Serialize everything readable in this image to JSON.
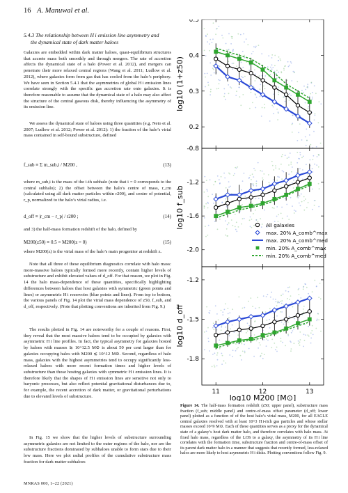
{
  "header": {
    "page_number": "16",
    "authors": "A. Manuwal et al."
  },
  "section": {
    "title_line1": "5.4.3 The relationship between H i emission line asymmetry and",
    "title_line2": "the dynamical state of dark matter haloes"
  },
  "paragraphs": {
    "p1": "Galaxies are embedded within dark matter haloes, quasi-equilibrium structures that accrete mass both smoothly and through mergers. The rate of accretion affects the dynamical state of a halo (Power et al. 2012), and mergers can penetrate their more relaxed central regions (Wang et al. 2011; Ludlow et al. 2012), where galaxies form from gas that has cooled from the halo’s periphery. We have seen in Section 5.4.1 that the asymmetries of global H i emission lines correlate strongly with the specific gas accretion rate onto galaxies. It is therefore reasonable to assume that the dynamical state of a halo may also affect the structure of the central gaseous disk, thereby influencing the asymmetry of its emission line.",
    "p2": "We assess the dynamical state of haloes using three quantities (e.g. Neto et al. 2007; Ludlow et al. 2012; Power et al. 2012): 1) the fraction of the halo’s virial mass contained in self-bound substructure, defined",
    "p3": "where m_sub,i is the mass of the i-th subhalo (note that i = 0 corresponds to the central subhalo); 2) the offset between the halo’s centre of mass, r_cm (calculated using all dark matter particles within r200), and centre of potential, r_p, normalized to the halo’s virial radius, i.e.",
    "p4": "and 3) the half-mass formation redshift of the halo, defined by",
    "p5": "where M200(z) is the virial mass of the halo’s main progenitor at redshift z.",
    "p6": "Note that all three of these equilibrium diagnostics correlate with halo mass: more-massive haloes typically formed more recently, contain higher levels of substructure and exhibit elevated values of d_off. For that reason, we plot in Fig. 14 the halo mass-dependence of these quantities, specifically highlighting differences between haloes that host galaxies with symmetric (green points and lines) or asymmetric H i reservoirs (blue points and lines). From top to bottom, the various panels of Fig. 14 plot the virial mass dependence of z50, f_sub, and d_off, respectively. (Note that plotting conventions are inherited from Fig. 9.)",
    "p7": "The results plotted in Fig. 14 are noteworthy for a couple of reasons. First, they reveal that the most massive haloes tend to be occupied by galaxies with asymmetric H i line profiles. In fact, the typical asymmetry for galaxies hosted by haloes with masses ≳ 10^12.5 M⊙ is about 50 per cent larger than for galaxies occupying halos with M200 ≲ 10^12 M⊙. Second, regardless of halo mass, galaxies with the highest asymmetries tend to occupy significantly less-relaxed haloes with more recent formation times and higher levels of substructure than those hosting galaxies with symmetric H i emission lines. It is therefore likely that the shapes of H i emission lines are sensitive not only to baryonic processes, but also reflect potential gravitational disturbances due to, for example, the recent accretion of dark matter, or gravitational perturbations due to elevated levels of substructure.",
    "p8": "In Fig. 15 we show that the higher levels of substructure surrounding asymmetric galaxies are not limited to the outer regions of the halo, nor are the substructure fractions dominated by subhaloes unable to form stars due to their low mass. Here we plot radial profiles of the cumulative substructure mass fraction for dark matter subhaloes"
  },
  "equations": {
    "eq13_lhs": "f_sub ≡ Σ m_sub,i / M200 ,",
    "eq13_num": "(13)",
    "eq14_lhs": "d_off ≡ |r_cm − r_p| / r200 ;",
    "eq14_num": "(14)",
    "eq15_lhs": "M200(z50) ≡ 0.5 × M200(z = 0)",
    "eq15_num": "(15)"
  },
  "footer": "MNRAS 000, 1–22 (2021)",
  "caption": {
    "label": "Figure 14.",
    "text": " The half-mass formation redshift (z50; upper panel), substructure mass fraction (f_sub; middle panel) and centre-of-mass offset parameter (d_off; lower panel) plotted as a function of of the host halo’s virial mass, M200, for all EAGLE central galaxies resolved with at least 10^3 H i-rich gas particles and whose stellar masses exceed 10^9 M⊙. Each of these quantities serves as a proxy for the dynamical state of a galaxy’s host dark matter halo, and therefore correlates with halo mass. At fixed halo mass, regardless of the LOS to a galaxy, the asymmetry of its H i line correlates with the formation time, substructure fraction and centre-of-mass offset of its parent dark matter halo in a manner that suggests that recently formed, less-relaxed halos are more likely to host asymmetric H i disks. Plotting conventions follow Fig. 9."
  },
  "chart_data": [
    {
      "type": "scatter",
      "ylabel": "log10 (1+z50)",
      "ylim": [
        0.14,
        0.5
      ],
      "yticks": [
        "0.2",
        "0.3",
        "0.4",
        "0.5"
      ],
      "xlim": [
        10.7,
        13.3
      ],
      "binned_x": [
        11.0,
        11.25,
        11.5,
        11.75,
        12.0,
        12.25,
        12.5,
        12.75,
        13.0
      ],
      "series": [
        {
          "name": "All galaxies",
          "values": [
            0.39,
            0.37,
            0.36,
            0.35,
            0.33,
            0.31,
            0.29,
            0.26,
            0.24
          ]
        },
        {
          "name": "max. 20% A_comb^max",
          "values": [
            0.37,
            0.34,
            0.33,
            0.31,
            0.29,
            0.27,
            0.25,
            0.23,
            0.21
          ]
        },
        {
          "name": "min. 20% A_comb^max",
          "values": [
            0.41,
            0.4,
            0.39,
            0.38,
            0.36,
            0.33,
            0.31,
            0.29,
            0.27
          ]
        },
        {
          "name": "min. 20% A_comb^med",
          "values": [
            0.42,
            0.41,
            0.4,
            0.39,
            0.37,
            0.35,
            0.32,
            0.3,
            0.28
          ]
        }
      ]
    },
    {
      "type": "scatter",
      "ylabel": "log10 f_sub",
      "ylim": [
        -2.2,
        -0.8
      ],
      "yticks": [
        "-0.8",
        "-1.2",
        "-1.6",
        "-2.0"
      ],
      "xlim": [
        10.7,
        13.3
      ],
      "binned_x": [
        11.0,
        11.25,
        11.5,
        11.75,
        12.0,
        12.25,
        12.5,
        12.75,
        13.0
      ],
      "series": [
        {
          "name": "All galaxies",
          "values": [
            -1.5,
            -1.45,
            -1.4,
            -1.38,
            -1.35,
            -1.3,
            -1.25,
            -1.2,
            -1.15
          ]
        },
        {
          "name": "max. 20% A_comb^max",
          "values": [
            -1.4,
            -1.35,
            -1.35,
            -1.3,
            -1.28,
            -1.22,
            -1.18,
            -1.12,
            -1.08
          ]
        },
        {
          "name": "min. 20% A_comb^max",
          "values": [
            -1.6,
            -1.55,
            -1.5,
            -1.48,
            -1.45,
            -1.4,
            -1.35,
            -1.28,
            -1.22
          ]
        },
        {
          "name": "min. 20% A_comb^med",
          "values": [
            -1.62,
            -1.58,
            -1.53,
            -1.5,
            -1.47,
            -1.42,
            -1.36,
            -1.3,
            -1.24
          ]
        }
      ],
      "legend": [
        "All galaxies",
        "max. 20% A_comb^max",
        "max. 20% A_comb^med",
        "min. 20% A_comb^max",
        "min. 20% A_comb^med"
      ]
    },
    {
      "type": "scatter",
      "ylabel": "log10 d_off",
      "ylim": [
        -2.0,
        -1.1
      ],
      "yticks": [
        "-1.2",
        "-1.5",
        "-1.8"
      ],
      "xlabel": "log10 M200 [M⊙]",
      "xticks": [
        "11",
        "12",
        "13"
      ],
      "xlim": [
        10.7,
        13.3
      ],
      "binned_x": [
        11.0,
        11.25,
        11.5,
        11.75,
        12.0,
        12.25,
        12.5,
        12.75,
        13.0
      ],
      "series": [
        {
          "name": "All galaxies",
          "values": [
            -1.62,
            -1.6,
            -1.58,
            -1.57,
            -1.55,
            -1.52,
            -1.5,
            -1.47,
            -1.44
          ]
        },
        {
          "name": "max. 20% A_comb^max",
          "values": [
            -1.55,
            -1.52,
            -1.5,
            -1.48,
            -1.47,
            -1.43,
            -1.4,
            -1.37,
            -1.34
          ]
        },
        {
          "name": "min. 20% A_comb^max",
          "values": [
            -1.7,
            -1.68,
            -1.66,
            -1.65,
            -1.62,
            -1.6,
            -1.57,
            -1.53,
            -1.5
          ]
        },
        {
          "name": "min. 20% A_comb^med",
          "values": [
            -1.72,
            -1.69,
            -1.67,
            -1.66,
            -1.64,
            -1.61,
            -1.58,
            -1.55,
            -1.52
          ]
        }
      ]
    }
  ],
  "colors": {
    "all": "#000000",
    "asym": "#2a49d6",
    "sym": "#2fa62f",
    "scatter_blue": "#6f8fe0",
    "scatter_green": "#7fc27f"
  }
}
